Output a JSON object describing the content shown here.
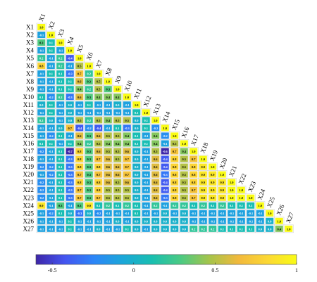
{
  "chart_data": {
    "type": "heatmap",
    "variables": [
      "X1",
      "X2",
      "X3",
      "X4",
      "X5",
      "X6",
      "X7",
      "X8",
      "X9",
      "X10",
      "X11",
      "X12",
      "X13",
      "X14",
      "X15",
      "X16",
      "X17",
      "X18",
      "X19",
      "X20",
      "X21",
      "X22",
      "X23",
      "X24",
      "X25",
      "X26",
      "X27"
    ],
    "diagonal_label": "1.0",
    "lower_triangle": [
      [],
      [
        -0.1
      ],
      [
        0.3,
        0.1
      ],
      [
        -0.1,
        0.1,
        -0.1
      ],
      [
        0.2,
        -0.1,
        0.2,
        -0.4
      ],
      [
        0.8,
        -0.1,
        0.2,
        -0.1,
        0.5
      ],
      [
        -0.1,
        0.1,
        0.1,
        -0.3,
        0.7,
        0.2
      ],
      [
        -0.1,
        -0.1,
        0.1,
        0.1,
        0.6,
        0.3,
        0.5
      ],
      [
        -0.1,
        -0.1,
        0.1,
        0.1,
        0.4,
        0.2,
        0.5,
        0.3
      ],
      [
        0.1,
        -0.2,
        0.2,
        -0.3,
        0.6,
        0.3,
        0.4,
        0.4,
        0.4
      ],
      [
        0.0,
        0.1,
        -0.1,
        0.0,
        -0.1,
        0.1,
        -0.1,
        -0.1,
        0.0,
        -0.1
      ],
      [
        -0.1,
        0.1,
        -0.1,
        0.0,
        -0.1,
        -0.1,
        -0.1,
        -0.1,
        -0.1,
        -0.1,
        0.1
      ],
      [
        0.2,
        0.0,
        -0.1,
        0.0,
        0.5,
        0.2,
        0.5,
        0.4,
        0.5,
        0.5,
        0.0,
        0.1
      ],
      [
        -0.1,
        -0.1,
        0.0,
        0.7,
        -0.4,
        -0.2,
        -0.4,
        -0.1,
        0.1,
        -0.3,
        0.0,
        0.1,
        -0.2
      ],
      [
        -0.1,
        -0.2,
        0.1,
        -0.1,
        0.6,
        0.3,
        0.6,
        0.5,
        0.5,
        0.4,
        0.1,
        -0.1,
        0.4,
        -0.2
      ],
      [
        0.1,
        0.1,
        -0.1,
        0.1,
        0.4,
        0.2,
        0.5,
        0.4,
        0.4,
        0.4,
        0.1,
        0.1,
        0.4,
        -0.1,
        0.5
      ],
      [
        -0.2,
        -0.1,
        0.1,
        -0.7,
        0.8,
        0.3,
        0.6,
        0.5,
        0.5,
        0.6,
        0.0,
        -0.1,
        0.5,
        -0.6,
        0.7,
        0.4
      ],
      [
        -0.1,
        -0.1,
        0.1,
        -0.3,
        0.8,
        0.3,
        0.7,
        0.6,
        0.5,
        0.7,
        0.0,
        -0.1,
        0.6,
        -0.4,
        0.8,
        0.5,
        0.7
      ],
      [
        -0.2,
        -0.2,
        0.1,
        -0.3,
        0.8,
        0.3,
        0.8,
        0.6,
        0.6,
        0.7,
        0.0,
        -0.1,
        0.6,
        -0.4,
        0.8,
        0.5,
        0.8,
        0.9
      ],
      [
        -0.1,
        -0.2,
        0.1,
        -0.3,
        0.7,
        0.3,
        0.7,
        0.6,
        0.6,
        0.7,
        0.0,
        -0.1,
        0.6,
        -0.3,
        0.8,
        0.5,
        0.8,
        0.9,
        0.9
      ],
      [
        -0.2,
        -0.1,
        0.1,
        -0.3,
        0.8,
        0.3,
        0.8,
        0.6,
        0.5,
        0.6,
        0.0,
        -0.1,
        0.6,
        -0.4,
        0.8,
        0.5,
        0.8,
        0.9,
        0.9,
        0.9
      ],
      [
        -0.2,
        -0.1,
        0.1,
        -0.3,
        0.7,
        0.3,
        0.8,
        0.5,
        0.5,
        0.5,
        0.0,
        -0.1,
        0.6,
        -0.4,
        0.8,
        0.5,
        0.7,
        0.9,
        0.9,
        0.9,
        1.0
      ],
      [
        -0.2,
        -0.1,
        0.1,
        -0.3,
        0.7,
        0.3,
        0.7,
        0.5,
        0.5,
        0.5,
        0.0,
        -0.1,
        0.6,
        -0.3,
        0.8,
        0.5,
        0.7,
        0.9,
        0.9,
        0.9,
        1.0,
        1.0
      ],
      [
        0.9,
        -0.1,
        0.3,
        -0.1,
        0.3,
        0.9,
        0.1,
        0.2,
        0.1,
        0.2,
        0.1,
        -0.1,
        0.2,
        -0.1,
        0.2,
        0.2,
        0.1,
        0.2,
        0.1,
        0.2,
        0.1,
        0.1,
        0.1
      ],
      [
        -0.1,
        -0.2,
        0.1,
        0.0,
        -0.3,
        0.0,
        -0.2,
        -0.1,
        -0.1,
        -0.1,
        0.1,
        -0.1,
        -0.1,
        0.0,
        -0.1,
        0.0,
        -0.1,
        -0.1,
        -0.1,
        -0.1,
        -0.1,
        -0.1,
        -0.1,
        -0.1
      ],
      [
        -0.1,
        -0.1,
        -0.1,
        0.1,
        -0.1,
        -0.1,
        -0.1,
        -0.1,
        0.0,
        -0.1,
        0.0,
        0.0,
        0.0,
        0.0,
        0.0,
        0.0,
        -0.1,
        -0.1,
        -0.1,
        -0.1,
        -0.1,
        -0.1,
        -0.1,
        -0.1,
        0.0
      ],
      [
        -0.1,
        -0.1,
        -0.1,
        0.1,
        -0.1,
        -0.1,
        0.0,
        -0.1,
        -0.1,
        0.1,
        0.0,
        -0.1,
        0.0,
        0.0,
        0.0,
        0.0,
        0.2,
        0.2,
        0.2,
        0.1,
        0.1,
        0.1,
        0.1,
        0.0,
        0.0,
        0.4
      ]
    ],
    "colorbar": {
      "min": -0.6,
      "max": 1.0,
      "ticks": [
        "-0.5",
        "0",
        "0.5",
        "1"
      ],
      "tick_values": [
        -0.5,
        0,
        0.5,
        1
      ]
    },
    "colormap": [
      "#3e26a8",
      "#4455f0",
      "#2c86f8",
      "#1ba7d9",
      "#19bfb1",
      "#4bca83",
      "#a6c44a",
      "#f2b93c",
      "#fcd834",
      "#f9fb15"
    ]
  }
}
